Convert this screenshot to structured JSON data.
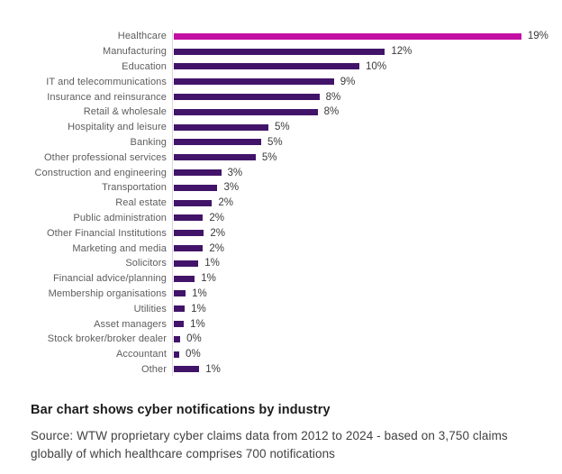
{
  "chart_data": {
    "type": "bar",
    "orientation": "horizontal",
    "categories": [
      "Healthcare",
      "Manufacturing",
      "Education",
      "IT and telecommunications",
      "Insurance and reinsurance",
      "Retail & wholesale",
      "Hospitality and leisure",
      "Banking",
      "Other professional services",
      "Construction and engineering",
      "Transportation",
      "Real estate",
      "Public administration",
      "Other Financial Institutions",
      "Marketing and media",
      "Solicitors",
      "Financial advice/planning",
      "Membership organisations",
      "Utilities",
      "Asset managers",
      "Stock broker/broker dealer",
      "Accountant",
      "Other"
    ],
    "values": [
      19,
      12,
      10,
      9,
      8,
      8,
      5,
      5,
      5,
      3,
      3,
      2,
      2,
      2,
      2,
      1,
      1,
      1,
      1,
      1,
      0,
      0,
      1
    ],
    "value_labels": [
      "19%",
      "12%",
      "10%",
      "9%",
      "8%",
      "8%",
      "5%",
      "5%",
      "5%",
      "3%",
      "3%",
      "2%",
      "2%",
      "2%",
      "2%",
      "1%",
      "1%",
      "1%",
      "1%",
      "1%",
      "0%",
      "0%",
      "1%"
    ],
    "bar_lengths_pct_est": [
      19.1,
      11.6,
      10.2,
      8.8,
      8.0,
      7.9,
      5.2,
      4.8,
      4.5,
      2.6,
      2.4,
      2.1,
      1.6,
      1.65,
      1.6,
      1.35,
      1.15,
      0.65,
      0.6,
      0.55,
      0.35,
      0.3,
      1.4
    ],
    "highlight_index": 0,
    "colors": {
      "highlight": "#c40fa5",
      "default": "#421469",
      "axis_line": "#d8d8d8",
      "category_label": "#5c5c5c",
      "value_label": "#3a3a3a"
    },
    "xlim": [
      0,
      21
    ],
    "grid": false,
    "legend": false,
    "title": "Bar chart shows cyber notifications by industry"
  },
  "caption": {
    "title": "Bar chart shows cyber notifications by industry",
    "source": "Source: WTW proprietary cyber claims data from 2012 to 2024 - based on 3,750 claims globally of which healthcare comprises 700 notifications"
  }
}
